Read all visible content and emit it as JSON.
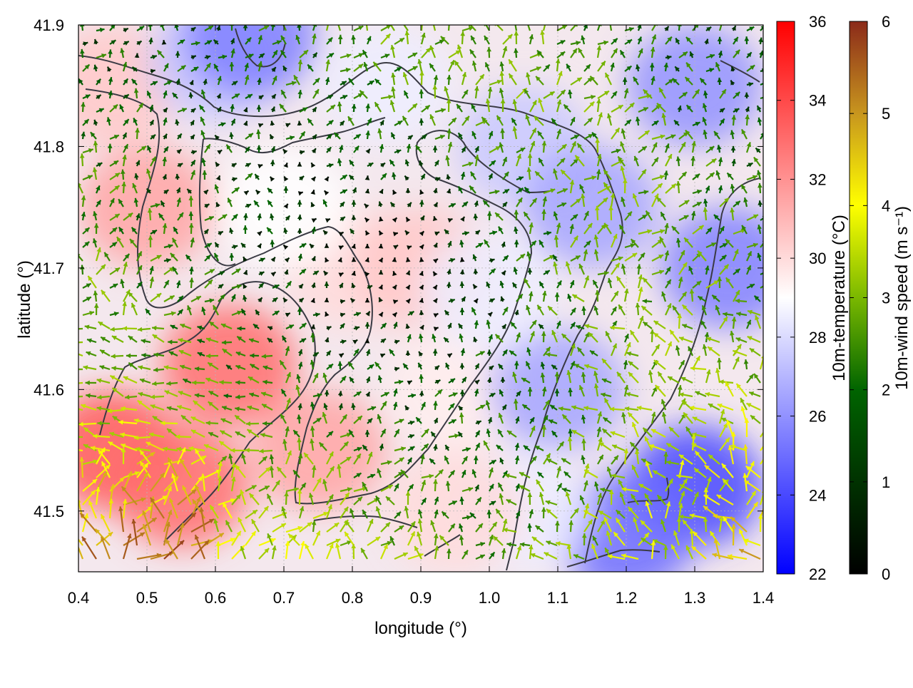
{
  "chart_data": {
    "type": "heatmap",
    "title": "",
    "xlabel": "longitude (°)",
    "ylabel": "latitude (°)",
    "xlim": [
      0.4,
      1.4
    ],
    "ylim": [
      41.45,
      41.9
    ],
    "xticks": [
      "0.4",
      "0.5",
      "0.6",
      "0.7",
      "0.8",
      "0.9",
      "1.0",
      "1.1",
      "1.2",
      "1.3",
      "1.4"
    ],
    "yticks": [
      "41.5",
      "41.6",
      "41.7",
      "41.8",
      "41.9"
    ],
    "grid": true,
    "temperature_colorbar": {
      "label": "10m-temperature (°C)",
      "range": [
        22,
        36
      ],
      "ticks": [
        "22",
        "24",
        "26",
        "28",
        "30",
        "32",
        "34",
        "36"
      ],
      "colors": [
        "#0000ff",
        "#ffffff",
        "#ff0000"
      ]
    },
    "windspeed_colorbar": {
      "label": "10m-wind speed (m s⁻¹)",
      "range": [
        0,
        6
      ],
      "ticks": [
        "0",
        "1",
        "2",
        "3",
        "4",
        "5",
        "6"
      ],
      "colors": [
        "#000000",
        "#006400",
        "#7ab800",
        "#ffff00",
        "#c8961e",
        "#8b2a1a"
      ]
    },
    "temperature_field_samples": [
      {
        "x": 0.45,
        "y": 41.55,
        "value": 33.5
      },
      {
        "x": 0.55,
        "y": 41.52,
        "value": 33.0
      },
      {
        "x": 0.62,
        "y": 41.62,
        "value": 33.0
      },
      {
        "x": 0.5,
        "y": 41.75,
        "value": 31.5
      },
      {
        "x": 0.45,
        "y": 41.85,
        "value": 30.5
      },
      {
        "x": 0.75,
        "y": 41.55,
        "value": 31.5
      },
      {
        "x": 0.8,
        "y": 41.7,
        "value": 30.0
      },
      {
        "x": 0.9,
        "y": 41.7,
        "value": 30.5
      },
      {
        "x": 0.95,
        "y": 41.6,
        "value": 29.5
      },
      {
        "x": 0.85,
        "y": 41.85,
        "value": 28.5
      },
      {
        "x": 0.6,
        "y": 41.87,
        "value": 27.5
      },
      {
        "x": 0.65,
        "y": 41.89,
        "value": 25.5
      },
      {
        "x": 1.05,
        "y": 41.8,
        "value": 27.5
      },
      {
        "x": 1.15,
        "y": 41.75,
        "value": 26.5
      },
      {
        "x": 1.3,
        "y": 41.85,
        "value": 26.0
      },
      {
        "x": 1.35,
        "y": 41.7,
        "value": 25.5
      },
      {
        "x": 1.3,
        "y": 41.52,
        "value": 24.0
      },
      {
        "x": 1.2,
        "y": 41.48,
        "value": 25.0
      },
      {
        "x": 1.1,
        "y": 41.6,
        "value": 26.5
      },
      {
        "x": 1.05,
        "y": 41.5,
        "value": 28.5
      },
      {
        "x": 0.95,
        "y": 41.5,
        "value": 30.0
      },
      {
        "x": 1.0,
        "y": 41.68,
        "value": 28.5
      },
      {
        "x": 0.7,
        "y": 41.75,
        "value": 29.0
      }
    ]
  }
}
